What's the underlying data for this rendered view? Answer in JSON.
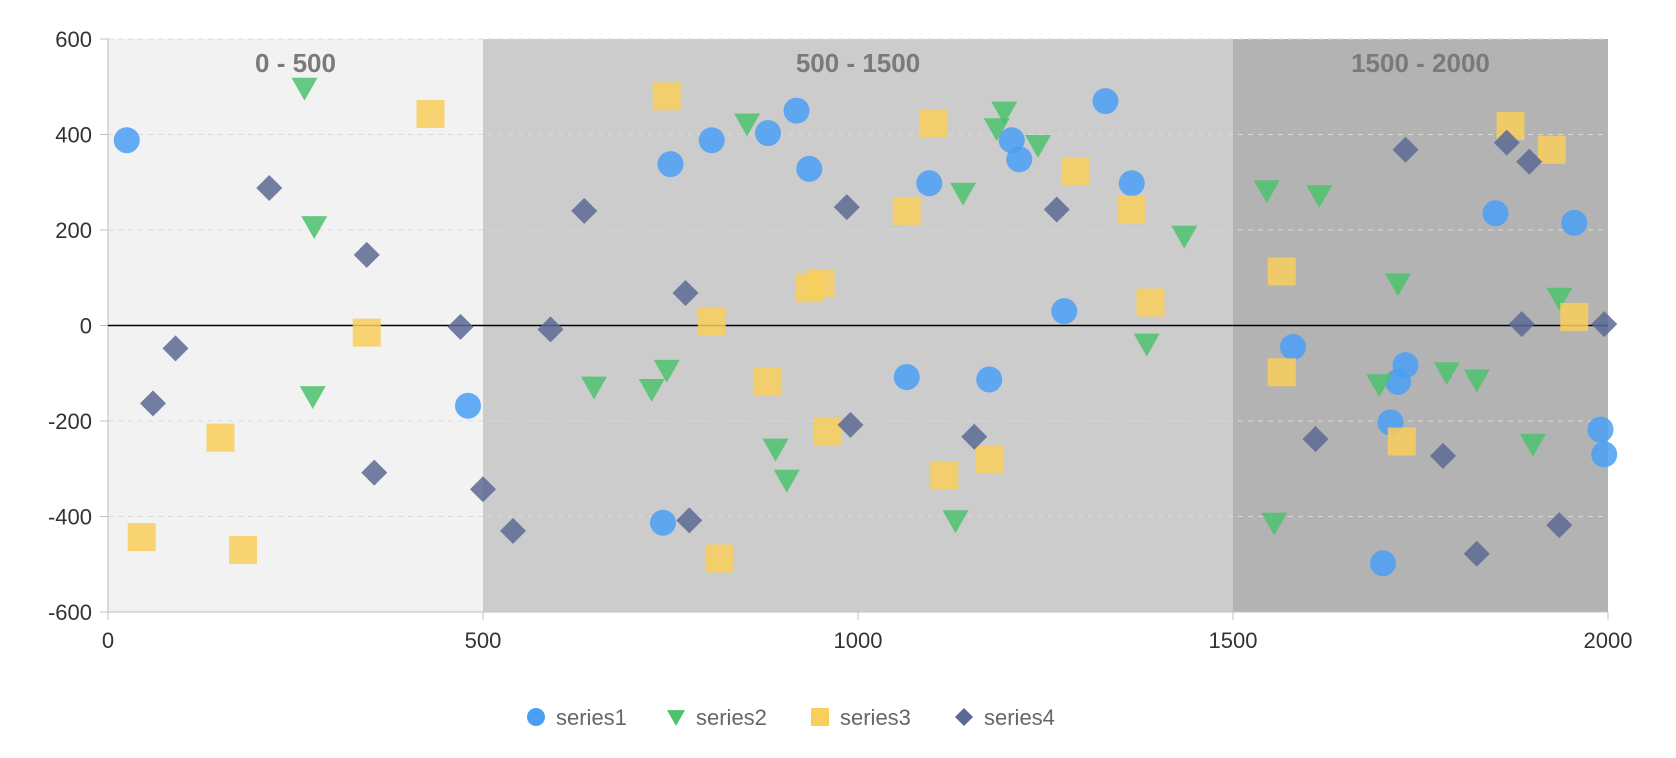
{
  "chart_data": {
    "type": "scatter",
    "xlim": [
      0,
      2000
    ],
    "ylim": [
      -600,
      600
    ],
    "x_ticks": [
      0,
      500,
      1000,
      1500,
      2000
    ],
    "y_ticks": [
      -600,
      -400,
      -200,
      0,
      200,
      400,
      600
    ],
    "grid": "horizontal dashed",
    "legend_position": "bottom",
    "bands": [
      {
        "label": "0 - 500",
        "from": 0,
        "to": 500,
        "color": "#f2f2f2"
      },
      {
        "label": "500 - 1500",
        "from": 500,
        "to": 1500,
        "color": "#cccccc"
      },
      {
        "label": "1500 - 2000",
        "from": 1500,
        "to": 2000,
        "color": "#b3b3b3"
      }
    ],
    "series": [
      {
        "name": "series1",
        "shape": "circle",
        "color": "#4a9ff5",
        "points": [
          [
            25,
            388
          ],
          [
            480,
            -168
          ],
          [
            740,
            -413
          ],
          [
            750,
            338
          ],
          [
            805,
            388
          ],
          [
            880,
            403
          ],
          [
            918,
            450
          ],
          [
            935,
            328
          ],
          [
            1065,
            -108
          ],
          [
            1095,
            298
          ],
          [
            1175,
            -113
          ],
          [
            1205,
            388
          ],
          [
            1215,
            348
          ],
          [
            1275,
            30
          ],
          [
            1330,
            470
          ],
          [
            1365,
            298
          ],
          [
            1580,
            -45
          ],
          [
            1700,
            -498
          ],
          [
            1710,
            -203
          ],
          [
            1720,
            -118
          ],
          [
            1730,
            -83
          ],
          [
            1850,
            235
          ],
          [
            1955,
            215
          ],
          [
            1990,
            -218
          ],
          [
            1995,
            -270
          ]
        ]
      },
      {
        "name": "series2",
        "shape": "triangle-down",
        "color": "#4cc26e",
        "points": [
          [
            262,
            498
          ],
          [
            275,
            208
          ],
          [
            273,
            -148
          ],
          [
            648,
            -128
          ],
          [
            725,
            -133
          ],
          [
            745,
            -93
          ],
          [
            852,
            423
          ],
          [
            890,
            -258
          ],
          [
            905,
            -323
          ],
          [
            1130,
            -408
          ],
          [
            1140,
            278
          ],
          [
            1185,
            413
          ],
          [
            1195,
            448
          ],
          [
            1240,
            378
          ],
          [
            1385,
            -38
          ],
          [
            1435,
            188
          ],
          [
            1545,
            283
          ],
          [
            1555,
            -413
          ],
          [
            1615,
            273
          ],
          [
            1695,
            -123
          ],
          [
            1720,
            88
          ],
          [
            1785,
            -98
          ],
          [
            1825,
            -113
          ],
          [
            1900,
            -248
          ],
          [
            1935,
            58
          ]
        ]
      },
      {
        "name": "series3",
        "shape": "square",
        "color": "#f8cf5a",
        "points": [
          [
            45,
            -443
          ],
          [
            150,
            -235
          ],
          [
            180,
            -470
          ],
          [
            345,
            -15
          ],
          [
            430,
            443
          ],
          [
            745,
            480
          ],
          [
            805,
            8
          ],
          [
            815,
            -488
          ],
          [
            880,
            -118
          ],
          [
            935,
            78
          ],
          [
            950,
            88
          ],
          [
            960,
            -223
          ],
          [
            1065,
            240
          ],
          [
            1100,
            423
          ],
          [
            1115,
            -315
          ],
          [
            1175,
            -280
          ],
          [
            1290,
            323
          ],
          [
            1365,
            243
          ],
          [
            1390,
            48
          ],
          [
            1565,
            113
          ],
          [
            1565,
            -98
          ],
          [
            1725,
            -243
          ],
          [
            1870,
            418
          ],
          [
            1925,
            368
          ],
          [
            1955,
            18
          ]
        ]
      },
      {
        "name": "series4",
        "shape": "diamond",
        "color": "#5c6894",
        "points": [
          [
            60,
            -163
          ],
          [
            90,
            -48
          ],
          [
            215,
            288
          ],
          [
            345,
            148
          ],
          [
            355,
            -308
          ],
          [
            470,
            -3
          ],
          [
            500,
            -343
          ],
          [
            540,
            -430
          ],
          [
            590,
            -8
          ],
          [
            635,
            240
          ],
          [
            770,
            68
          ],
          [
            775,
            -408
          ],
          [
            985,
            248
          ],
          [
            990,
            -208
          ],
          [
            1155,
            -233
          ],
          [
            1265,
            243
          ],
          [
            1610,
            -238
          ],
          [
            1730,
            368
          ],
          [
            1780,
            -273
          ],
          [
            1825,
            -478
          ],
          [
            1865,
            383
          ],
          [
            1885,
            3
          ],
          [
            1895,
            343
          ],
          [
            1935,
            -418
          ],
          [
            1995,
            3
          ]
        ]
      }
    ]
  }
}
